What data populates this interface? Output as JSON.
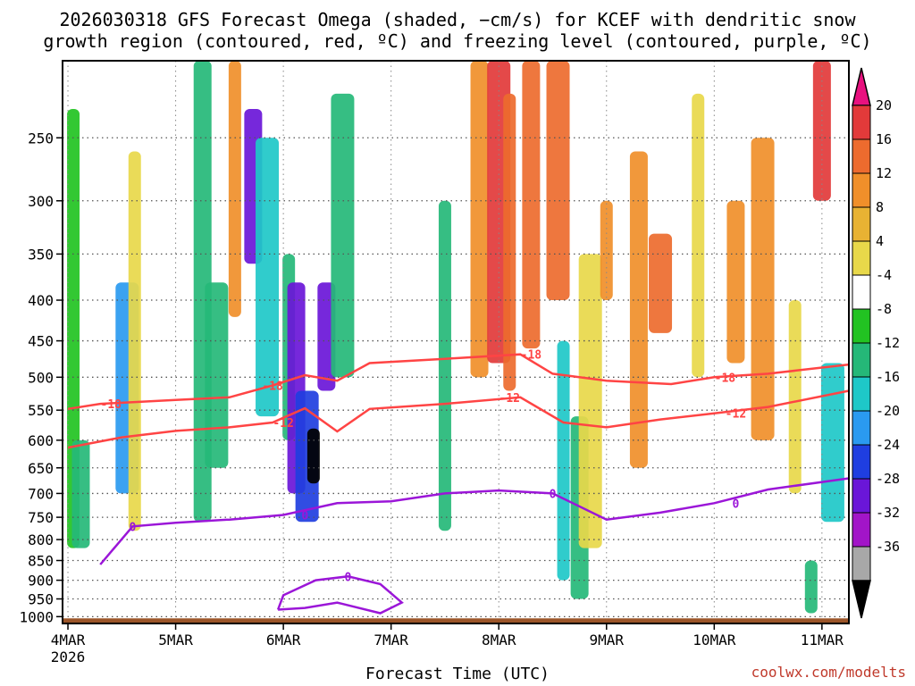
{
  "title": {
    "line1": "2026030318 GFS Forecast Omega (shaded, −cm/s) for KCEF with dendritic snow",
    "line2": "growth region (contoured, red, ºC) and freezing level (contoured, purple, ºC)"
  },
  "watermark": "coolwx.com/modelts",
  "chart_data": {
    "type": "heatmap",
    "title": "2026030318 GFS Forecast Omega (shaded, −cm/s) for KCEF with dendritic snow growth region (contoured, red, ºC) and freezing level (contoured, purple, ºC)",
    "xlabel": "Forecast Time (UTC)",
    "ylabel": "",
    "y_scale": "log-pressure",
    "ylim": [
      1020,
      200
    ],
    "yticks": [
      250,
      300,
      350,
      400,
      450,
      500,
      550,
      600,
      650,
      700,
      750,
      800,
      850,
      900,
      950,
      1000
    ],
    "xlim": [
      -0.05,
      7.25
    ],
    "xticks": [
      {
        "x": 0,
        "label": "4MAR",
        "sub": "2026"
      },
      {
        "x": 1,
        "label": "5MAR",
        "sub": ""
      },
      {
        "x": 2,
        "label": "6MAR",
        "sub": ""
      },
      {
        "x": 3,
        "label": "7MAR",
        "sub": ""
      },
      {
        "x": 4,
        "label": "8MAR",
        "sub": ""
      },
      {
        "x": 5,
        "label": "9MAR",
        "sub": ""
      },
      {
        "x": 6,
        "label": "10MAR",
        "sub": ""
      },
      {
        "x": 7,
        "label": "11MAR",
        "sub": ""
      }
    ],
    "grid": true,
    "colorbar": {
      "labels": [
        20,
        16,
        12,
        8,
        4,
        -4,
        -8,
        -12,
        -16,
        -20,
        -24,
        -28,
        -32,
        -36
      ],
      "colors": [
        "#e8117f",
        "#e23a3a",
        "#ed6b2e",
        "#f08f2a",
        "#e8b233",
        "#e8d84a",
        "#ffffff",
        "#22c322",
        "#25b878",
        "#1ec8c8",
        "#2a9af0",
        "#1f3ee0",
        "#6a16d8",
        "#a215c8",
        "#a8a8a8",
        "#000000"
      ]
    },
    "omega_cells": [
      {
        "t": 0.05,
        "p0": 230,
        "p1": 820,
        "v": -6
      },
      {
        "t": 0.12,
        "p0": 600,
        "p1": 820,
        "v": -10
      },
      {
        "t": 0.55,
        "p0": 380,
        "p1": 700,
        "v": -18
      },
      {
        "t": 0.62,
        "p0": 260,
        "p1": 780,
        "v": 6
      },
      {
        "t": 1.25,
        "p0": 200,
        "p1": 760,
        "v": -8
      },
      {
        "t": 1.38,
        "p0": 380,
        "p1": 650,
        "v": -10
      },
      {
        "t": 1.55,
        "p0": 200,
        "p1": 420,
        "v": 10
      },
      {
        "t": 1.72,
        "p0": 230,
        "p1": 360,
        "v": -26
      },
      {
        "t": 1.85,
        "p0": 250,
        "p1": 560,
        "v": -12
      },
      {
        "t": 2.05,
        "p0": 350,
        "p1": 600,
        "v": -8
      },
      {
        "t": 2.12,
        "p0": 380,
        "p1": 700,
        "v": -24
      },
      {
        "t": 2.22,
        "p0": 520,
        "p1": 760,
        "v": -20
      },
      {
        "t": 2.28,
        "p0": 580,
        "p1": 680,
        "v": -36
      },
      {
        "t": 2.4,
        "p0": 380,
        "p1": 520,
        "v": -24
      },
      {
        "t": 2.55,
        "p0": 220,
        "p1": 500,
        "v": -8
      },
      {
        "t": 3.5,
        "p0": 300,
        "p1": 780,
        "v": -8
      },
      {
        "t": 3.82,
        "p0": 200,
        "p1": 500,
        "v": 8
      },
      {
        "t": 4.0,
        "p0": 200,
        "p1": 480,
        "v": 18
      },
      {
        "t": 4.1,
        "p0": 220,
        "p1": 520,
        "v": 14
      },
      {
        "t": 4.3,
        "p0": 200,
        "p1": 460,
        "v": 12
      },
      {
        "t": 4.55,
        "p0": 200,
        "p1": 400,
        "v": 14
      },
      {
        "t": 4.6,
        "p0": 450,
        "p1": 900,
        "v": -14
      },
      {
        "t": 4.75,
        "p0": 560,
        "p1": 950,
        "v": -10
      },
      {
        "t": 4.85,
        "p0": 350,
        "p1": 820,
        "v": 6
      },
      {
        "t": 5.0,
        "p0": 300,
        "p1": 400,
        "v": 10
      },
      {
        "t": 5.3,
        "p0": 260,
        "p1": 650,
        "v": 8
      },
      {
        "t": 5.5,
        "p0": 330,
        "p1": 440,
        "v": 14
      },
      {
        "t": 5.85,
        "p0": 220,
        "p1": 500,
        "v": 6
      },
      {
        "t": 6.2,
        "p0": 300,
        "p1": 480,
        "v": 10
      },
      {
        "t": 6.45,
        "p0": 250,
        "p1": 600,
        "v": 8
      },
      {
        "t": 6.75,
        "p0": 400,
        "p1": 700,
        "v": 6
      },
      {
        "t": 7.0,
        "p0": 200,
        "p1": 300,
        "v": 18
      },
      {
        "t": 7.1,
        "p0": 480,
        "p1": 760,
        "v": -14
      },
      {
        "t": 6.9,
        "p0": 850,
        "p1": 990,
        "v": -8
      }
    ],
    "contours": [
      {
        "name": "-18",
        "color": "#ff4444",
        "label_at": [
          0.4,
          1.9,
          4.3,
          6.1
        ],
        "points": [
          [
            0.0,
            548
          ],
          [
            0.3,
            540
          ],
          [
            1.0,
            534
          ],
          [
            1.5,
            530
          ],
          [
            1.9,
            512
          ],
          [
            2.2,
            497
          ],
          [
            2.5,
            505
          ],
          [
            2.8,
            480
          ],
          [
            3.5,
            474
          ],
          [
            4.2,
            468
          ],
          [
            4.5,
            495
          ],
          [
            5.0,
            505
          ],
          [
            5.6,
            510
          ],
          [
            6.0,
            500
          ],
          [
            6.5,
            495
          ],
          [
            7.25,
            482
          ]
        ]
      },
      {
        "name": "-12",
        "color": "#ff4444",
        "label_at": [
          2.0,
          4.1,
          6.2
        ],
        "points": [
          [
            0.0,
            613
          ],
          [
            0.5,
            595
          ],
          [
            1.0,
            584
          ],
          [
            1.5,
            578
          ],
          [
            1.9,
            570
          ],
          [
            2.2,
            547
          ],
          [
            2.5,
            585
          ],
          [
            2.8,
            548
          ],
          [
            3.5,
            540
          ],
          [
            4.2,
            530
          ],
          [
            4.6,
            570
          ],
          [
            5.0,
            578
          ],
          [
            5.5,
            565
          ],
          [
            6.0,
            555
          ],
          [
            6.5,
            545
          ],
          [
            7.25,
            520
          ]
        ]
      },
      {
        "name": "0",
        "color": "#9b16d8",
        "label_at": [
          0.6,
          2.2,
          4.5,
          6.2
        ],
        "points": [
          [
            0.3,
            860
          ],
          [
            0.6,
            770
          ],
          [
            1.0,
            762
          ],
          [
            1.5,
            755
          ],
          [
            2.0,
            745
          ],
          [
            2.5,
            720
          ],
          [
            3.0,
            716
          ],
          [
            3.5,
            700
          ],
          [
            4.0,
            694
          ],
          [
            4.5,
            700
          ],
          [
            5.0,
            755
          ],
          [
            5.5,
            740
          ],
          [
            6.0,
            720
          ],
          [
            6.5,
            692
          ],
          [
            7.25,
            670
          ]
        ]
      },
      {
        "name": "0b",
        "color": "#9b16d8",
        "label_at": [
          2.6
        ],
        "points": [
          [
            1.95,
            980
          ],
          [
            2.0,
            940
          ],
          [
            2.3,
            900
          ],
          [
            2.6,
            890
          ],
          [
            2.9,
            910
          ],
          [
            3.1,
            960
          ],
          [
            2.9,
            990
          ],
          [
            2.5,
            960
          ],
          [
            2.2,
            975
          ],
          [
            1.95,
            980
          ]
        ]
      }
    ],
    "ground": {
      "color": "#9b5529",
      "p_top": 1005
    }
  }
}
